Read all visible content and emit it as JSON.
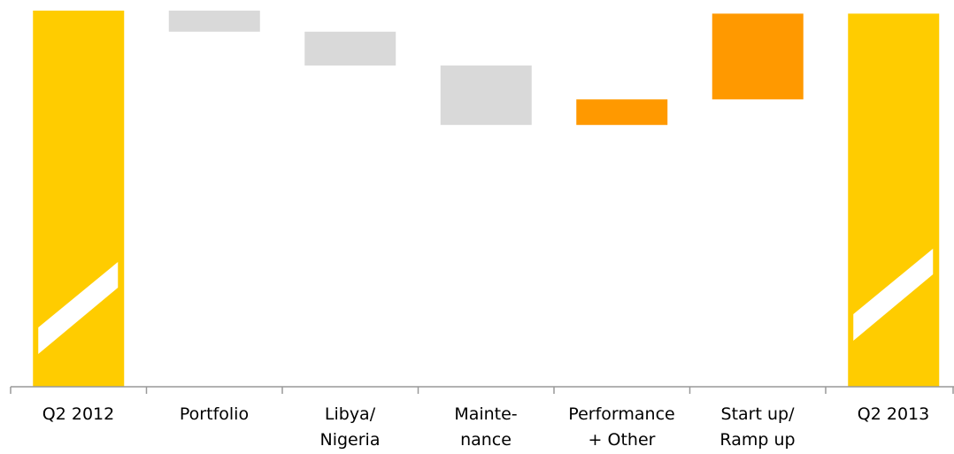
{
  "chart_data": {
    "type": "waterfall",
    "categories": [
      "Q2 2012",
      "Portfolio",
      "Libya/\nNigeria",
      "Mainte-\nnance",
      "Performance\n+ Other",
      "Start up/\nRamp up",
      "Q2 2013"
    ],
    "values": [
      100,
      -5.6,
      -9,
      -15.8,
      6.8,
      22.8,
      99.2
    ],
    "kinds": [
      "total",
      "decrease",
      "decrease",
      "decrease",
      "increase",
      "increase",
      "total"
    ],
    "colors": {
      "total": "#ffcc00",
      "decrease": "#d9d9d9",
      "increase": "#ff9900"
    },
    "ylim": [
      0,
      100
    ],
    "axis_break": true
  }
}
